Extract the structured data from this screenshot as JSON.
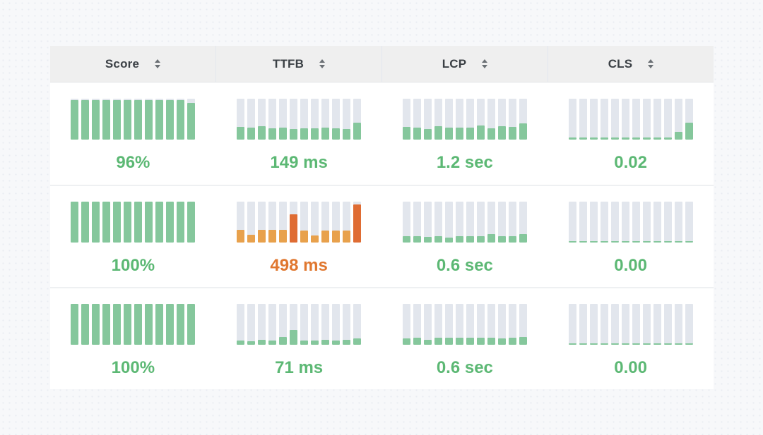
{
  "colors": {
    "page_bg": "#f7f8fa",
    "header_bg": "#efefef",
    "header_text": "#3b4045",
    "row_divider": "#eef0f2",
    "track": "#e2e6ed",
    "green_fill": "#85c79c",
    "green_text": "#5cb874",
    "orange_fill": "#e8a14c",
    "orange_strong": "#df6c33",
    "orange_text": "#e0772f",
    "sort_icon": "#6b7075"
  },
  "table": {
    "columns": [
      {
        "label": "Score",
        "sort_icon": "sort-icon"
      },
      {
        "label": "TTFB",
        "sort_icon": "sort-icon"
      },
      {
        "label": "LCP",
        "sort_icon": "sort-icon"
      },
      {
        "label": "CLS",
        "sort_icon": "sort-icon"
      }
    ],
    "rows": [
      {
        "cells": [
          {
            "column": "Score",
            "value": "96%",
            "tone": "green",
            "bars": [
              96,
              96,
              96,
              96,
              96,
              96,
              96,
              96,
              96,
              95,
              95,
              88
            ],
            "strong_bars": []
          },
          {
            "column": "TTFB",
            "value": "149 ms",
            "tone": "green",
            "bars": [
              30,
              28,
              32,
              26,
              28,
              25,
              26,
              26,
              28,
              27,
              25,
              40
            ],
            "strong_bars": []
          },
          {
            "column": "LCP",
            "value": "1.2 sec",
            "tone": "green",
            "bars": [
              30,
              28,
              25,
              32,
              28,
              28,
              28,
              33,
              27,
              32,
              30,
              38
            ],
            "strong_bars": []
          },
          {
            "column": "CLS",
            "value": "0.02",
            "tone": "green",
            "bars": [
              4,
              4,
              4,
              4,
              4,
              4,
              4,
              4,
              4,
              4,
              18,
              40
            ],
            "strong_bars": []
          }
        ]
      },
      {
        "cells": [
          {
            "column": "Score",
            "value": "100%",
            "tone": "green",
            "bars": [
              100,
              100,
              100,
              100,
              100,
              100,
              100,
              100,
              100,
              100,
              100,
              100
            ],
            "strong_bars": []
          },
          {
            "column": "TTFB",
            "value": "498 ms",
            "tone": "orange",
            "bars": [
              30,
              18,
              30,
              30,
              30,
              68,
              28,
              16,
              28,
              28,
              28,
              92
            ],
            "strong_bars": [
              5,
              11
            ]
          },
          {
            "column": "LCP",
            "value": "0.6 sec",
            "tone": "green",
            "bars": [
              14,
              14,
              13,
              14,
              12,
              14,
              15,
              15,
              20,
              14,
              15,
              20
            ],
            "strong_bars": []
          },
          {
            "column": "CLS",
            "value": "0.00",
            "tone": "green",
            "bars": [
              3,
              3,
              3,
              3,
              3,
              3,
              3,
              3,
              3,
              3,
              3,
              3
            ],
            "strong_bars": []
          }
        ]
      },
      {
        "cells": [
          {
            "column": "Score",
            "value": "100%",
            "tone": "green",
            "bars": [
              100,
              100,
              100,
              100,
              100,
              100,
              100,
              100,
              100,
              100,
              100,
              100
            ],
            "strong_bars": []
          },
          {
            "column": "TTFB",
            "value": "71 ms",
            "tone": "green",
            "bars": [
              10,
              8,
              12,
              10,
              18,
              35,
              10,
              10,
              12,
              10,
              12,
              15
            ],
            "strong_bars": []
          },
          {
            "column": "LCP",
            "value": "0.6 sec",
            "tone": "green",
            "bars": [
              14,
              16,
              12,
              16,
              16,
              16,
              16,
              16,
              16,
              14,
              16,
              18
            ],
            "strong_bars": []
          },
          {
            "column": "CLS",
            "value": "0.00",
            "tone": "green",
            "bars": [
              3,
              3,
              3,
              3,
              3,
              3,
              3,
              3,
              3,
              3,
              3,
              3
            ],
            "strong_bars": []
          }
        ]
      }
    ]
  }
}
